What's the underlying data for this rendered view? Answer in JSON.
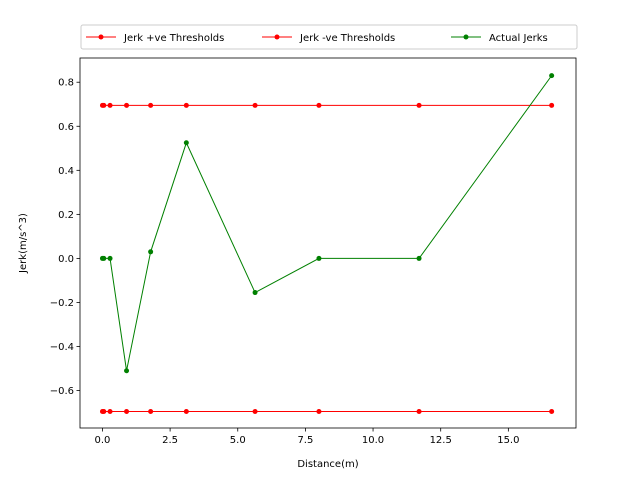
{
  "chart_data": {
    "type": "line",
    "title": "",
    "xlabel": "Distance(m)",
    "ylabel": "Jerk(m/s^3)",
    "xlim": [
      -0.83,
      17.5
    ],
    "ylim": [
      -0.77,
      0.91
    ],
    "xticks": [
      0.0,
      2.5,
      5.0,
      7.5,
      10.0,
      12.5,
      15.0
    ],
    "xtick_labels": [
      "0.0",
      "2.5",
      "5.0",
      "7.5",
      "10.0",
      "12.5",
      "15.0"
    ],
    "yticks": [
      -0.6,
      -0.4,
      -0.2,
      0.0,
      0.2,
      0.4,
      0.6,
      0.8
    ],
    "ytick_labels": [
      "−0.6",
      "−0.4",
      "−0.2",
      "0.0",
      "0.2",
      "0.4",
      "0.6",
      "0.8"
    ],
    "grid": false,
    "legend_position": "top-center-outside",
    "series": [
      {
        "name": "Jerk +ve Thresholds",
        "color": "#ff0000",
        "x": [
          0.0,
          0.05,
          0.28,
          0.89,
          1.78,
          3.1,
          5.64,
          8.0,
          11.7,
          16.6
        ],
        "y": [
          0.695,
          0.695,
          0.695,
          0.695,
          0.695,
          0.695,
          0.695,
          0.695,
          0.695,
          0.695
        ]
      },
      {
        "name": "Jerk -ve Thresholds",
        "color": "#ff0000",
        "x": [
          0.0,
          0.05,
          0.28,
          0.89,
          1.78,
          3.1,
          5.64,
          8.0,
          11.7,
          16.6
        ],
        "y": [
          -0.695,
          -0.695,
          -0.695,
          -0.695,
          -0.695,
          -0.695,
          -0.695,
          -0.695,
          -0.695,
          -0.695
        ]
      },
      {
        "name": "Actual Jerks",
        "color": "#008000",
        "x": [
          0.0,
          0.05,
          0.28,
          0.89,
          1.78,
          3.1,
          5.64,
          8.0,
          11.7,
          16.6
        ],
        "y": [
          0.0,
          0.0,
          0.0,
          -0.51,
          0.03,
          0.525,
          -0.155,
          0.0,
          0.0,
          0.83
        ]
      }
    ]
  }
}
